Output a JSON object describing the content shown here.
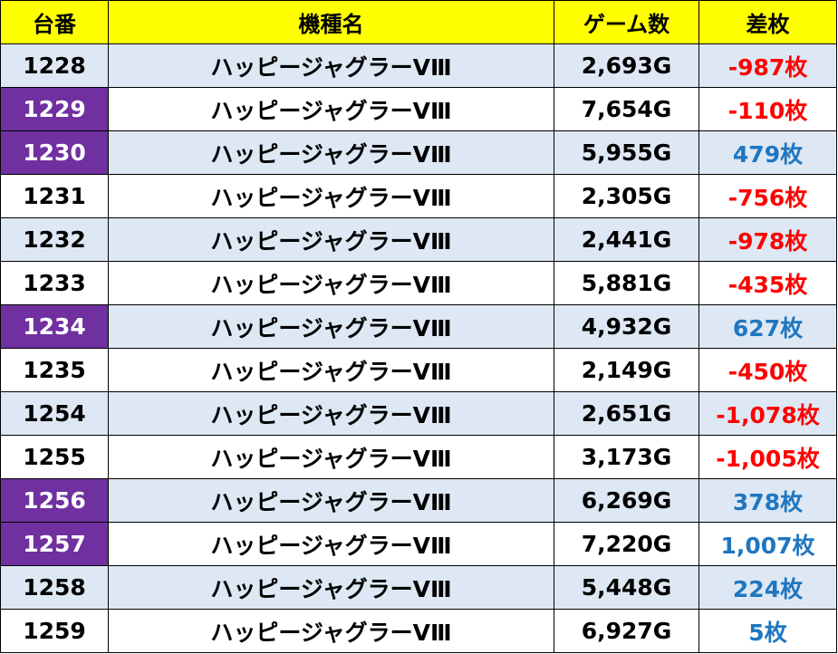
{
  "table": {
    "headers": {
      "machine_no": "台番",
      "model": "機種名",
      "games": "ゲーム数",
      "diff": "差枚"
    },
    "colors": {
      "header_bg": "#ffff00",
      "row_alt_bg": "#dde8f4",
      "highlight_bg": "#7030a0",
      "negative": "#ff0000",
      "positive": "#1f76c0"
    },
    "rows": [
      {
        "machine_no": "1228",
        "model": "ハッピージャグラーVⅢ",
        "games": "2,693G",
        "diff": "-987枚",
        "sign": "neg",
        "highlight": false
      },
      {
        "machine_no": "1229",
        "model": "ハッピージャグラーVⅢ",
        "games": "7,654G",
        "diff": "-110枚",
        "sign": "neg",
        "highlight": true
      },
      {
        "machine_no": "1230",
        "model": "ハッピージャグラーVⅢ",
        "games": "5,955G",
        "diff": "479枚",
        "sign": "pos",
        "highlight": true
      },
      {
        "machine_no": "1231",
        "model": "ハッピージャグラーVⅢ",
        "games": "2,305G",
        "diff": "-756枚",
        "sign": "neg",
        "highlight": false
      },
      {
        "machine_no": "1232",
        "model": "ハッピージャグラーVⅢ",
        "games": "2,441G",
        "diff": "-978枚",
        "sign": "neg",
        "highlight": false
      },
      {
        "machine_no": "1233",
        "model": "ハッピージャグラーVⅢ",
        "games": "5,881G",
        "diff": "-435枚",
        "sign": "neg",
        "highlight": false
      },
      {
        "machine_no": "1234",
        "model": "ハッピージャグラーVⅢ",
        "games": "4,932G",
        "diff": "627枚",
        "sign": "pos",
        "highlight": true
      },
      {
        "machine_no": "1235",
        "model": "ハッピージャグラーVⅢ",
        "games": "2,149G",
        "diff": "-450枚",
        "sign": "neg",
        "highlight": false
      },
      {
        "machine_no": "1254",
        "model": "ハッピージャグラーVⅢ",
        "games": "2,651G",
        "diff": "-1,078枚",
        "sign": "neg",
        "highlight": false
      },
      {
        "machine_no": "1255",
        "model": "ハッピージャグラーVⅢ",
        "games": "3,173G",
        "diff": "-1,005枚",
        "sign": "neg",
        "highlight": false
      },
      {
        "machine_no": "1256",
        "model": "ハッピージャグラーVⅢ",
        "games": "6,269G",
        "diff": "378枚",
        "sign": "pos",
        "highlight": true
      },
      {
        "machine_no": "1257",
        "model": "ハッピージャグラーVⅢ",
        "games": "7,220G",
        "diff": "1,007枚",
        "sign": "pos",
        "highlight": true
      },
      {
        "machine_no": "1258",
        "model": "ハッピージャグラーVⅢ",
        "games": "5,448G",
        "diff": "224枚",
        "sign": "pos",
        "highlight": false
      },
      {
        "machine_no": "1259",
        "model": "ハッピージャグラーVⅢ",
        "games": "6,927G",
        "diff": "5枚",
        "sign": "pos",
        "highlight": false
      }
    ]
  }
}
